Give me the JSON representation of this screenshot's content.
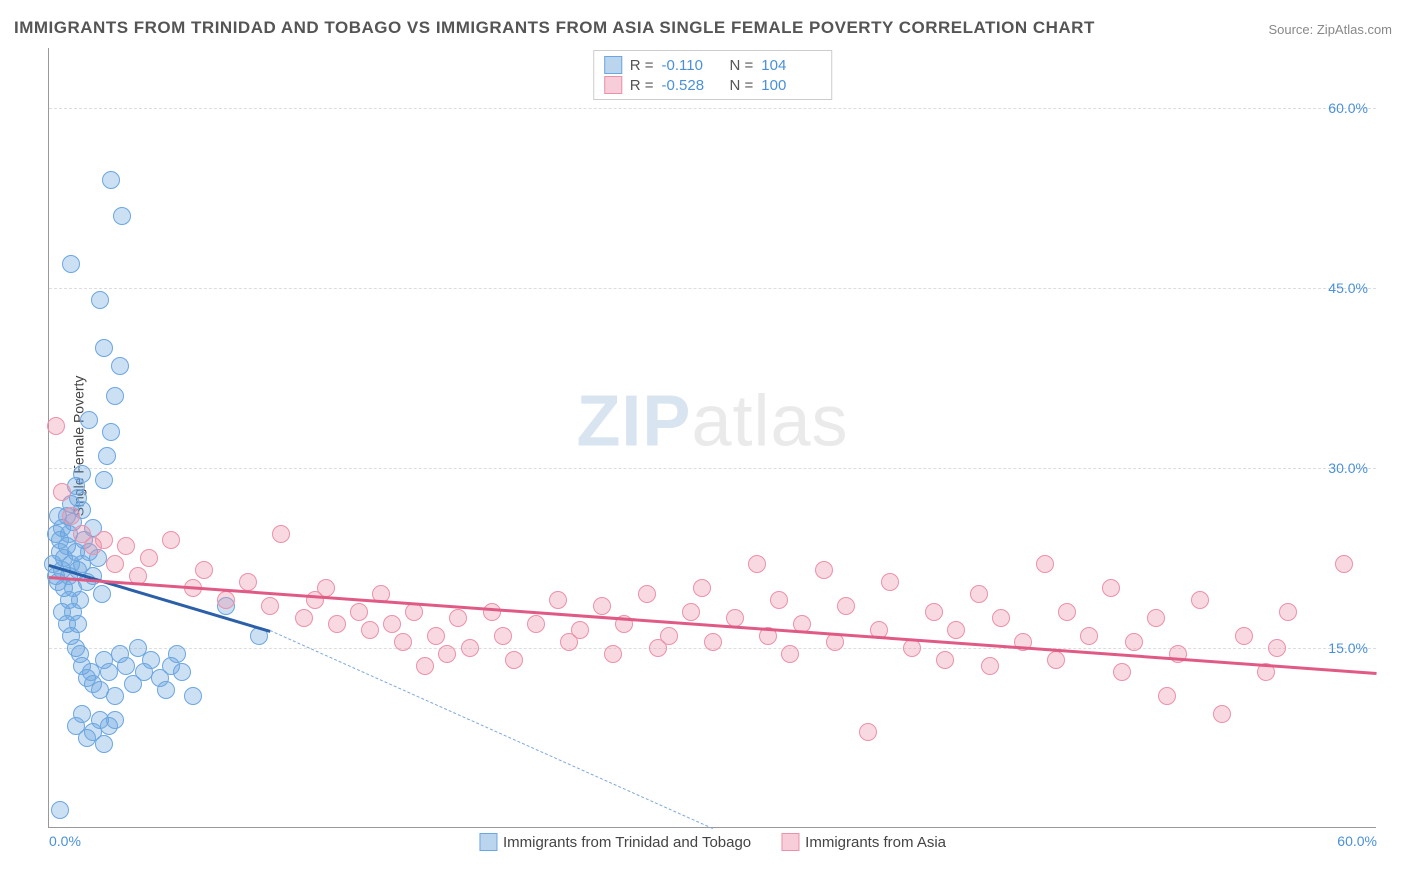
{
  "title": "IMMIGRANTS FROM TRINIDAD AND TOBAGO VS IMMIGRANTS FROM ASIA SINGLE FEMALE POVERTY CORRELATION CHART",
  "source": "Source: ZipAtlas.com",
  "y_axis_label": "Single Female Poverty",
  "watermark_zip": "ZIP",
  "watermark_atlas": "atlas",
  "chart": {
    "type": "scatter",
    "background_color": "#ffffff",
    "grid_color": "#dddddd",
    "axis_color": "#999999",
    "tick_label_color": "#4a90d9",
    "title_fontsize": 17,
    "label_fontsize": 14,
    "xlim": [
      0,
      60
    ],
    "ylim": [
      0,
      65
    ],
    "y_ticks": [
      {
        "value": 15,
        "label": "15.0%"
      },
      {
        "value": 30,
        "label": "30.0%"
      },
      {
        "value": 45,
        "label": "45.0%"
      },
      {
        "value": 60,
        "label": "60.0%"
      }
    ],
    "x_ticks": [
      {
        "value": 0,
        "label": "0.0%"
      },
      {
        "value": 60,
        "label": "60.0%"
      }
    ],
    "marker_radius": 9,
    "marker_border": 1
  },
  "series": [
    {
      "id": "trinidad",
      "name": "Immigrants from Trinidad and Tobago",
      "fill_color": "rgba(108,166,224,0.35)",
      "stroke_color": "#6ca6e0",
      "swatch_fill": "#bcd5ef",
      "swatch_border": "#6ca6e0",
      "trend_color": "#2b5fa8",
      "trend_dash_color": "#7fa8d8",
      "R_label": "R =",
      "R_value": "-0.110",
      "N_label": "N =",
      "N_value": "104",
      "trend": {
        "x1": 0,
        "y1": 22.0,
        "x2": 10,
        "y2": 16.5
      },
      "trend_extrap": {
        "x1": 10,
        "y1": 16.5,
        "x2": 30,
        "y2": 0
      },
      "points": [
        [
          0.2,
          22
        ],
        [
          0.3,
          21
        ],
        [
          0.4,
          20.5
        ],
        [
          0.5,
          23
        ],
        [
          0.5,
          24
        ],
        [
          0.6,
          25
        ],
        [
          0.6,
          21.5
        ],
        [
          0.7,
          22.5
        ],
        [
          0.7,
          20
        ],
        [
          0.8,
          23.5
        ],
        [
          0.8,
          26
        ],
        [
          0.9,
          24.5
        ],
        [
          0.9,
          21
        ],
        [
          1.0,
          22
        ],
        [
          1.0,
          27
        ],
        [
          1.1,
          25.5
        ],
        [
          1.1,
          20
        ],
        [
          1.2,
          23
        ],
        [
          1.2,
          28.5
        ],
        [
          1.3,
          21.5
        ],
        [
          1.4,
          19
        ],
        [
          1.5,
          22
        ],
        [
          1.5,
          26.5
        ],
        [
          1.6,
          24
        ],
        [
          1.7,
          20.5
        ],
        [
          1.8,
          23
        ],
        [
          2.0,
          25
        ],
        [
          2.0,
          21
        ],
        [
          2.2,
          22.5
        ],
        [
          2.4,
          19.5
        ],
        [
          2.5,
          29
        ],
        [
          2.6,
          31
        ],
        [
          2.8,
          33
        ],
        [
          3.0,
          36
        ],
        [
          3.2,
          38.5
        ],
        [
          1.0,
          47
        ],
        [
          2.8,
          54
        ],
        [
          3.3,
          51
        ],
        [
          2.3,
          44
        ],
        [
          2.5,
          40
        ],
        [
          0.6,
          18
        ],
        [
          0.8,
          17
        ],
        [
          1.0,
          16
        ],
        [
          1.2,
          15
        ],
        [
          1.4,
          14.5
        ],
        [
          1.5,
          13.5
        ],
        [
          1.7,
          12.5
        ],
        [
          1.9,
          13
        ],
        [
          2.0,
          12
        ],
        [
          2.3,
          11.5
        ],
        [
          2.5,
          14
        ],
        [
          2.7,
          13
        ],
        [
          3.0,
          11
        ],
        [
          3.2,
          14.5
        ],
        [
          3.5,
          13.5
        ],
        [
          3.8,
          12
        ],
        [
          4.0,
          15
        ],
        [
          4.3,
          13
        ],
        [
          4.6,
          14
        ],
        [
          5.0,
          12.5
        ],
        [
          5.3,
          11.5
        ],
        [
          5.5,
          13.5
        ],
        [
          5.8,
          14.5
        ],
        [
          6.0,
          13
        ],
        [
          6.5,
          11
        ],
        [
          0.5,
          1.5
        ],
        [
          1.2,
          8.5
        ],
        [
          1.5,
          9.5
        ],
        [
          1.7,
          7.5
        ],
        [
          2.0,
          8
        ],
        [
          2.3,
          9
        ],
        [
          2.5,
          7
        ],
        [
          2.7,
          8.5
        ],
        [
          3.0,
          9
        ],
        [
          1.3,
          27.5
        ],
        [
          1.5,
          29.5
        ],
        [
          0.4,
          26
        ],
        [
          0.3,
          24.5
        ],
        [
          8.0,
          18.5
        ],
        [
          9.5,
          16
        ],
        [
          1.8,
          34
        ],
        [
          0.9,
          19
        ],
        [
          1.1,
          18
        ],
        [
          1.3,
          17
        ]
      ]
    },
    {
      "id": "asia",
      "name": "Immigrants from Asia",
      "fill_color": "rgba(236,145,170,0.35)",
      "stroke_color": "#ec91aa",
      "swatch_fill": "#f6cdd8",
      "swatch_border": "#ec91aa",
      "trend_color": "#e05a85",
      "R_label": "R =",
      "R_value": "-0.528",
      "N_label": "N =",
      "N_value": "100",
      "trend": {
        "x1": 0,
        "y1": 21.0,
        "x2": 60,
        "y2": 13.0
      },
      "points": [
        [
          0.3,
          33.5
        ],
        [
          0.6,
          28
        ],
        [
          1.0,
          26
        ],
        [
          1.5,
          24.5
        ],
        [
          2.0,
          23.5
        ],
        [
          2.5,
          24
        ],
        [
          3.0,
          22
        ],
        [
          3.5,
          23.5
        ],
        [
          4.0,
          21
        ],
        [
          4.5,
          22.5
        ],
        [
          5.5,
          24
        ],
        [
          6.5,
          20
        ],
        [
          7.0,
          21.5
        ],
        [
          8.0,
          19
        ],
        [
          9.0,
          20.5
        ],
        [
          10.0,
          18.5
        ],
        [
          10.5,
          24.5
        ],
        [
          11.5,
          17.5
        ],
        [
          12.0,
          19
        ],
        [
          12.5,
          20
        ],
        [
          13.0,
          17
        ],
        [
          14.0,
          18
        ],
        [
          14.5,
          16.5
        ],
        [
          15.0,
          19.5
        ],
        [
          15.5,
          17
        ],
        [
          16.0,
          15.5
        ],
        [
          16.5,
          18
        ],
        [
          17.0,
          13.5
        ],
        [
          17.5,
          16
        ],
        [
          18.0,
          14.5
        ],
        [
          18.5,
          17.5
        ],
        [
          19.0,
          15
        ],
        [
          20.0,
          18
        ],
        [
          20.5,
          16
        ],
        [
          21.0,
          14
        ],
        [
          22.0,
          17
        ],
        [
          23.0,
          19
        ],
        [
          23.5,
          15.5
        ],
        [
          24.0,
          16.5
        ],
        [
          25.0,
          18.5
        ],
        [
          25.5,
          14.5
        ],
        [
          26.0,
          17
        ],
        [
          27.0,
          19.5
        ],
        [
          27.5,
          15
        ],
        [
          28.0,
          16
        ],
        [
          29.0,
          18
        ],
        [
          29.5,
          20
        ],
        [
          30.0,
          15.5
        ],
        [
          31.0,
          17.5
        ],
        [
          32.0,
          22
        ],
        [
          32.5,
          16
        ],
        [
          33.0,
          19
        ],
        [
          33.5,
          14.5
        ],
        [
          34.0,
          17
        ],
        [
          35.0,
          21.5
        ],
        [
          35.5,
          15.5
        ],
        [
          36.0,
          18.5
        ],
        [
          37.0,
          8
        ],
        [
          37.5,
          16.5
        ],
        [
          38.0,
          20.5
        ],
        [
          39.0,
          15
        ],
        [
          40.0,
          18
        ],
        [
          40.5,
          14
        ],
        [
          41.0,
          16.5
        ],
        [
          42.0,
          19.5
        ],
        [
          42.5,
          13.5
        ],
        [
          43.0,
          17.5
        ],
        [
          44.0,
          15.5
        ],
        [
          45.0,
          22
        ],
        [
          45.5,
          14
        ],
        [
          46.0,
          18
        ],
        [
          47.0,
          16
        ],
        [
          48.0,
          20
        ],
        [
          48.5,
          13
        ],
        [
          49.0,
          15.5
        ],
        [
          50.0,
          17.5
        ],
        [
          50.5,
          11
        ],
        [
          51.0,
          14.5
        ],
        [
          52.0,
          19
        ],
        [
          53.0,
          9.5
        ],
        [
          54.0,
          16
        ],
        [
          55.0,
          13
        ],
        [
          56.0,
          18
        ],
        [
          58.5,
          22
        ],
        [
          55.5,
          15
        ]
      ]
    }
  ],
  "bottom_legend_series": [
    "trinidad",
    "asia"
  ]
}
